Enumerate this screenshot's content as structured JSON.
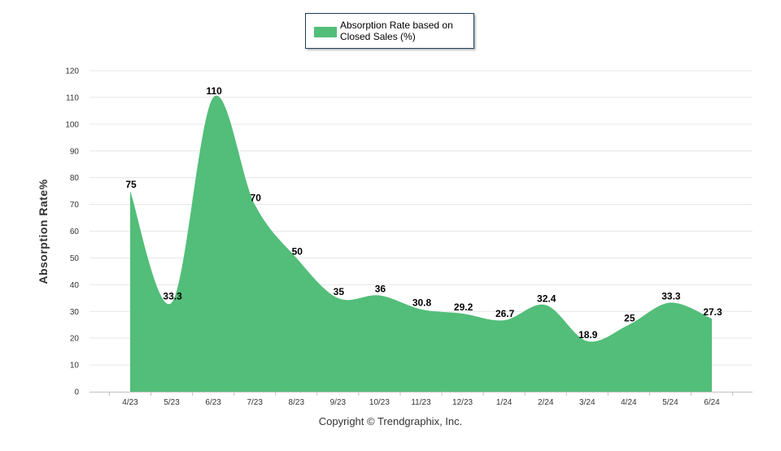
{
  "chart_data": {
    "type": "area",
    "title": "",
    "xlabel": "",
    "ylabel": "Absorption Rate%",
    "categories": [
      "4/23",
      "5/23",
      "6/23",
      "7/23",
      "8/23",
      "9/23",
      "10/23",
      "11/23",
      "12/23",
      "1/24",
      "2/24",
      "3/24",
      "4/24",
      "5/24",
      "6/24"
    ],
    "series": [
      {
        "name": "Absorption Rate based on Closed Sales (%)",
        "values": [
          75,
          33.3,
          110,
          70,
          50,
          35,
          36,
          30.8,
          29.2,
          26.7,
          32.4,
          18.9,
          25,
          33.3,
          27.3
        ],
        "labels": [
          "75",
          "33.3",
          "110",
          "70",
          "50",
          "35",
          "36",
          "30.8",
          "29.2",
          "26.7",
          "32.4",
          "18.9",
          "25",
          "33.3",
          "27.3"
        ]
      }
    ],
    "ylim": [
      0,
      120
    ],
    "yticks": [
      "0",
      "10",
      "20",
      "30",
      "40",
      "50",
      "60",
      "70",
      "80",
      "90",
      "100",
      "110",
      "120"
    ],
    "grid": true,
    "legend_position": "top-center",
    "fill_color": "#52be79",
    "grid_color": "#e6e6e6",
    "axis_color": "#c0c0c0"
  },
  "legend": {
    "label": "Absorption Rate based on Closed Sales (%)"
  },
  "footer": {
    "copyright": "Copyright © Trendgraphix, Inc."
  }
}
